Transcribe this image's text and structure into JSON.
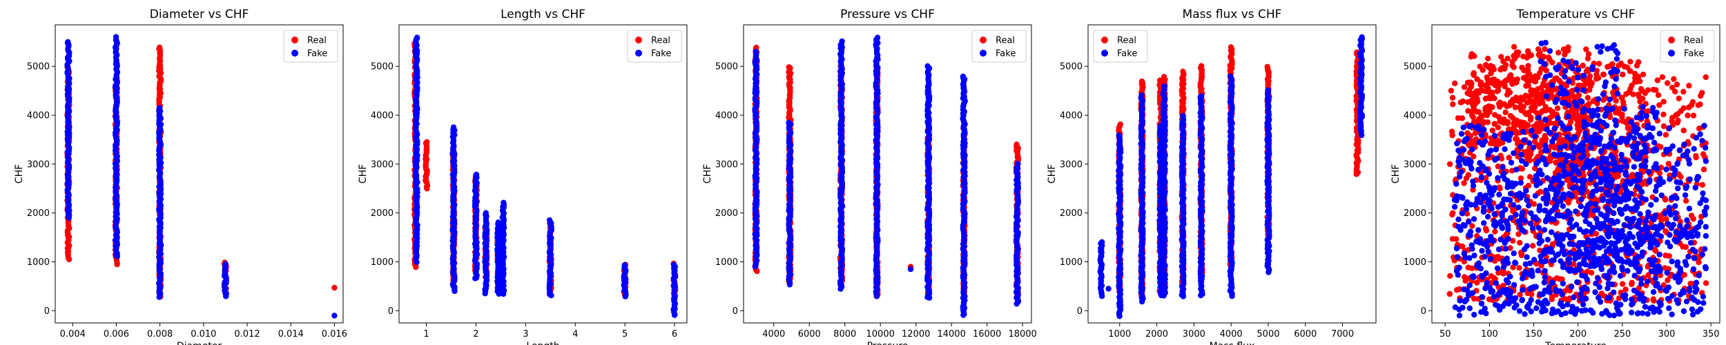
{
  "colors": {
    "real": "#ff0000",
    "fake": "#0000ff"
  },
  "legend_labels": {
    "real": "Real",
    "fake": "Fake"
  },
  "chart_data": [
    {
      "type": "scatter",
      "title": "Diameter vs CHF",
      "xlabel": "Diameter",
      "ylabel": "CHF",
      "xlim": [
        0.0032,
        0.0164
      ],
      "ylim": [
        -250,
        5850
      ],
      "xticks": [
        0.004,
        0.006,
        0.008,
        0.01,
        0.012,
        0.014,
        0.016
      ],
      "xtick_labels": [
        "0.004",
        "0.006",
        "0.008",
        "0.010",
        "0.012",
        "0.014",
        "0.016"
      ],
      "yticks": [
        0,
        1000,
        2000,
        3000,
        4000,
        5000
      ],
      "ytick_labels": [
        "0",
        "1000",
        "2000",
        "3000",
        "4000",
        "5000"
      ],
      "legend": "top-right",
      "series": [
        {
          "name": "Real",
          "color": "#ff0000",
          "clusters": [
            {
              "x": 0.0038,
              "y": [
                1050,
                5000
              ]
            },
            {
              "x": 0.006,
              "y": [
                950,
                4700
              ]
            },
            {
              "x": 0.008,
              "y": [
                300,
                5400
              ]
            },
            {
              "x": 0.011,
              "y": [
                350,
                980
              ]
            }
          ],
          "points": [
            [
              0.016,
              470
            ]
          ]
        },
        {
          "name": "Fake",
          "color": "#0000ff",
          "clusters": [
            {
              "x": 0.0038,
              "y": [
                1900,
                5500
              ]
            },
            {
              "x": 0.006,
              "y": [
                1100,
                5600
              ]
            },
            {
              "x": 0.008,
              "y": [
                280,
                4150
              ]
            },
            {
              "x": 0.011,
              "y": [
                300,
                950
              ]
            }
          ],
          "points": [
            [
              0.016,
              -100
            ]
          ]
        }
      ]
    },
    {
      "type": "scatter",
      "title": "Length vs CHF",
      "xlabel": "Length",
      "ylabel": "CHF",
      "xlim": [
        0.45,
        6.25
      ],
      "ylim": [
        -250,
        5850
      ],
      "xticks": [
        1,
        2,
        3,
        4,
        5,
        6
      ],
      "xtick_labels": [
        "1",
        "2",
        "3",
        "4",
        "5",
        "6"
      ],
      "yticks": [
        0,
        1000,
        2000,
        3000,
        4000,
        5000
      ],
      "ytick_labels": [
        "0",
        "1000",
        "2000",
        "3000",
        "4000",
        "5000"
      ],
      "legend": "top-right",
      "series": [
        {
          "name": "Real",
          "color": "#ff0000",
          "clusters": [
            {
              "x": 0.78,
              "y": [
                900,
                5450
              ]
            },
            {
              "x": 1.0,
              "y": [
                2500,
                3450
              ]
            },
            {
              "x": 1.55,
              "y": [
                600,
                3300
              ]
            },
            {
              "x": 2.0,
              "y": [
                800,
                2700
              ]
            },
            {
              "x": 2.2,
              "y": [
                700,
                1800
              ]
            },
            {
              "x": 2.45,
              "y": [
                400,
                1650
              ]
            },
            {
              "x": 3.5,
              "y": [
                350,
                1800
              ]
            },
            {
              "x": 5.0,
              "y": [
                300,
                950
              ]
            },
            {
              "x": 6.0,
              "y": [
                250,
                980
              ]
            }
          ],
          "points": []
        },
        {
          "name": "Fake",
          "color": "#0000ff",
          "clusters": [
            {
              "x": 0.8,
              "y": [
                1000,
                5600
              ]
            },
            {
              "x": 1.55,
              "y": [
                400,
                3750
              ]
            },
            {
              "x": 2.0,
              "y": [
                650,
                2800
              ]
            },
            {
              "x": 2.2,
              "y": [
                350,
                2000
              ]
            },
            {
              "x": 2.45,
              "y": [
                350,
                1800
              ]
            },
            {
              "x": 2.55,
              "y": [
                350,
                2200
              ]
            },
            {
              "x": 3.5,
              "y": [
                300,
                1850
              ]
            },
            {
              "x": 5.0,
              "y": [
                300,
                950
              ]
            },
            {
              "x": 6.0,
              "y": [
                -100,
                950
              ]
            }
          ],
          "points": []
        }
      ]
    },
    {
      "type": "scatter",
      "title": "Pressure vs CHF",
      "xlabel": "Pressure",
      "ylabel": "CHF",
      "xlim": [
        2300,
        18500
      ],
      "ylim": [
        -250,
        5850
      ],
      "xticks": [
        4000,
        6000,
        8000,
        10000,
        12000,
        14000,
        16000,
        18000
      ],
      "xtick_labels": [
        "4000",
        "6000",
        "8000",
        "10000",
        "12000",
        "14000",
        "16000",
        "18000"
      ],
      "yticks": [
        0,
        1000,
        2000,
        3000,
        4000,
        5000
      ],
      "ytick_labels": [
        "0",
        "1000",
        "2000",
        "3000",
        "4000",
        "5000"
      ],
      "legend": "top-right",
      "series": [
        {
          "name": "Real",
          "color": "#ff0000",
          "clusters": [
            {
              "x": 3000,
              "y": [
                800,
                5400
              ]
            },
            {
              "x": 4900,
              "y": [
                600,
                5000
              ]
            },
            {
              "x": 7800,
              "y": [
                500,
                5000
              ]
            },
            {
              "x": 9800,
              "y": [
                300,
                5000
              ]
            },
            {
              "x": 12700,
              "y": [
                300,
                3900
              ]
            },
            {
              "x": 14700,
              "y": [
                300,
                3900
              ]
            },
            {
              "x": 17700,
              "y": [
                200,
                3400
              ]
            }
          ],
          "points": [
            [
              11700,
              900
            ]
          ]
        },
        {
          "name": "Fake",
          "color": "#0000ff",
          "clusters": [
            {
              "x": 3000,
              "y": [
                900,
                5300
              ]
            },
            {
              "x": 4900,
              "y": [
                550,
                3850
              ]
            },
            {
              "x": 7800,
              "y": [
                450,
                5500
              ]
            },
            {
              "x": 9800,
              "y": [
                300,
                5600
              ]
            },
            {
              "x": 12700,
              "y": [
                250,
                5000
              ]
            },
            {
              "x": 14700,
              "y": [
                -100,
                4800
              ]
            },
            {
              "x": 17700,
              "y": [
                150,
                3000
              ]
            }
          ],
          "points": [
            [
              11700,
              850
            ]
          ]
        }
      ]
    },
    {
      "type": "scatter",
      "title": "Mass flux vs CHF",
      "xlabel": "Mass flux",
      "ylabel": "CHF",
      "xlim": [
        150,
        7900
      ],
      "ylim": [
        -250,
        5850
      ],
      "xticks": [
        1000,
        2000,
        3000,
        4000,
        5000,
        6000,
        7000
      ],
      "xtick_labels": [
        "1000",
        "2000",
        "3000",
        "4000",
        "5000",
        "6000",
        "7000"
      ],
      "yticks": [
        0,
        1000,
        2000,
        3000,
        4000,
        5000
      ],
      "ytick_labels": [
        "0",
        "1000",
        "2000",
        "3000",
        "4000",
        "5000"
      ],
      "legend": "top-left",
      "series": [
        {
          "name": "Real",
          "color": "#ff0000",
          "clusters": [
            {
              "x": 1000,
              "y": [
                400,
                3800
              ]
            },
            {
              "x": 1600,
              "y": [
                300,
                4700
              ]
            },
            {
              "x": 2100,
              "y": [
                400,
                4700
              ]
            },
            {
              "x": 2200,
              "y": [
                500,
                4800
              ]
            },
            {
              "x": 2700,
              "y": [
                400,
                4900
              ]
            },
            {
              "x": 3200,
              "y": [
                600,
                5000
              ]
            },
            {
              "x": 4000,
              "y": [
                800,
                5400
              ]
            },
            {
              "x": 5000,
              "y": [
                1500,
                5000
              ]
            },
            {
              "x": 7400,
              "y": [
                2800,
                5300
              ]
            }
          ],
          "points": []
        },
        {
          "name": "Fake",
          "color": "#0000ff",
          "clusters": [
            {
              "x": 500,
              "y": [
                300,
                1400
              ]
            },
            {
              "x": 1000,
              "y": [
                -100,
                3600
              ]
            },
            {
              "x": 1600,
              "y": [
                200,
                4400
              ]
            },
            {
              "x": 2100,
              "y": [
                300,
                3800
              ]
            },
            {
              "x": 2200,
              "y": [
                300,
                4600
              ]
            },
            {
              "x": 2700,
              "y": [
                300,
                4000
              ]
            },
            {
              "x": 3200,
              "y": [
                300,
                4400
              ]
            },
            {
              "x": 4000,
              "y": [
                300,
                4800
              ]
            },
            {
              "x": 5000,
              "y": [
                800,
                4500
              ]
            },
            {
              "x": 7500,
              "y": [
                3600,
                5600
              ]
            }
          ],
          "points": [
            [
              700,
              450
            ]
          ]
        }
      ]
    },
    {
      "type": "scatter",
      "title": "Temperature vs CHF",
      "xlabel": "Temperature",
      "ylabel": "CHF",
      "xlim": [
        35,
        360
      ],
      "ylim": [
        -250,
        5850
      ],
      "xticks": [
        50,
        100,
        150,
        200,
        250,
        300,
        350
      ],
      "xtick_labels": [
        "50",
        "100",
        "150",
        "200",
        "250",
        "300",
        "350"
      ],
      "yticks": [
        0,
        1000,
        2000,
        3000,
        4000,
        5000
      ],
      "ytick_labels": [
        "0",
        "1000",
        "2000",
        "3000",
        "4000",
        "5000"
      ],
      "legend": "top-right",
      "series": [
        {
          "name": "Real",
          "color": "#ff0000",
          "clouds": [
            {
              "x": [
                55,
                345
              ],
              "y": [
                200,
                4800
              ]
            },
            {
              "x": 120,
              "y": [
                3400,
                5300
              ]
            },
            {
              "x": 170,
              "y": [
                3000,
                5400
              ]
            },
            {
              "x": 230,
              "y": [
                2200,
                5100
              ]
            }
          ]
        },
        {
          "name": "Fake",
          "color": "#0000ff",
          "clouds": [
            {
              "x": [
                60,
                345
              ],
              "y": [
                -100,
                3800
              ]
            },
            {
              "x": 250,
              "y": [
                800,
                4200
              ]
            },
            {
              "x": 200,
              "y": [
                1000,
                5500
              ]
            }
          ]
        }
      ]
    }
  ]
}
